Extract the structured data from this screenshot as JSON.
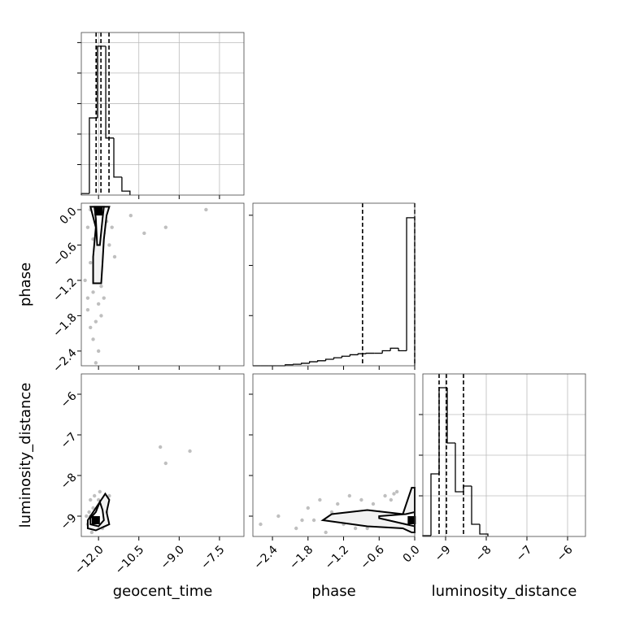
{
  "chart_data": [
    {
      "type": "histogram",
      "bins": [
        -12.64,
        -12.34,
        -12.04,
        -11.73,
        -11.43,
        -11.13,
        -10.83
      ],
      "values": [
        0.05,
        2.53,
        4.88,
        1.87,
        0.59,
        0.13
      ],
      "quantiles": [
        -12.09,
        -11.91,
        -11.61
      ],
      "xlim": [
        -12.64,
        -6.59
      ],
      "xticks": [
        -12,
        -10.5,
        -9,
        -7.5
      ],
      "ylim": [
        0,
        5.33
      ],
      "yticks": [
        1,
        2,
        3,
        4,
        5
      ],
      "grid": true
    },
    {
      "type": "scatter",
      "y_label": "phase",
      "x": [
        -12.3,
        -12.1,
        -11.9,
        -11.7,
        -12.4,
        -12.2,
        -12.0,
        -11.8,
        -11.6,
        -12.3,
        -12.1,
        -11.9,
        -12.5,
        -12.2,
        -12.0,
        -11.8,
        -12.4,
        -12.1,
        -11.9,
        -12.3,
        -12.2,
        -12.0,
        -12.4,
        -12.1,
        -11.5,
        -11.4,
        -10.8,
        -10.3,
        -9.5,
        -8.0
      ],
      "y": [
        0.0,
        -0.1,
        -0.05,
        -0.2,
        -0.3,
        -0.5,
        -0.7,
        -0.4,
        -0.6,
        -0.9,
        -1.1,
        -1.3,
        -1.2,
        -1.4,
        -1.6,
        -1.5,
        -1.7,
        -1.9,
        -1.8,
        -2.0,
        -2.2,
        -2.4,
        -1.5,
        -2.6,
        -0.3,
        -0.8,
        -0.1,
        -0.4,
        -0.3,
        0.0
      ],
      "contours": [
        {
          "x": [
            -12.3,
            -11.6,
            -11.7,
            -11.8,
            -11.85,
            -11.9,
            -12.2,
            -12.2,
            -12.1,
            -12.3
          ],
          "y": [
            0.05,
            0.05,
            -0.1,
            -0.5,
            -0.9,
            -1.25,
            -1.25,
            -0.8,
            -0.3,
            0.05
          ]
        },
        {
          "x": [
            -12.15,
            -11.8,
            -11.85,
            -11.95,
            -12.05,
            -12.1,
            -12.15
          ],
          "y": [
            0.05,
            0.05,
            -0.15,
            -0.6,
            -0.6,
            -0.15,
            0.05
          ]
        }
      ],
      "peak": {
        "x": [
          -12.0
        ],
        "y": [
          -0.03
        ]
      },
      "xlim": [
        -12.64,
        -6.59
      ],
      "xticks": [
        -12,
        -10.5,
        -9,
        -7.5
      ],
      "ylim": [
        -2.65,
        0.11
      ],
      "yticks": [
        {
          "value": 0,
          "label": "0.0"
        },
        {
          "value": -0.6,
          "label": "−0.6"
        },
        {
          "value": -1.2,
          "label": "−1.2"
        },
        {
          "value": -1.8,
          "label": "−1.8"
        },
        {
          "value": -2.4,
          "label": "−2.4"
        }
      ],
      "grid": false
    },
    {
      "type": "histogram",
      "bins": [
        -2.73,
        -2.5935,
        -2.457,
        -2.3205,
        -2.184,
        -2.0475,
        -1.911,
        -1.7745,
        -1.638,
        -1.5015,
        -1.365,
        -1.2285,
        -1.092,
        -0.9555,
        -0.819,
        -0.6825,
        -0.546,
        -0.4095,
        -0.273,
        -0.1365,
        0
      ],
      "values": [
        0,
        0,
        0,
        0,
        0.02,
        0.03,
        0.05,
        0.08,
        0.1,
        0.13,
        0.16,
        0.19,
        0.22,
        0.24,
        0.25,
        0.25,
        0.3,
        0.35,
        0.3,
        2.95
      ],
      "quantiles": [
        -0.88,
        0
      ],
      "xlim": [
        -2.73,
        0
      ],
      "xticks": [
        -2.4,
        -1.8,
        -1.2,
        -0.6,
        0
      ],
      "ylim": [
        0,
        3.24
      ],
      "yticks": [
        1,
        2,
        3
      ],
      "grid": false
    },
    {
      "type": "scatter",
      "x_label": "geocent_time",
      "y_label": "luminosity_distance",
      "x": [
        -12.4,
        -12.3,
        -12.2,
        -12.1,
        -12.0,
        -11.9,
        -11.8,
        -11.7,
        -11.6,
        -12.35,
        -12.25,
        -12.15,
        -12.05,
        -11.95,
        -11.85,
        -11.75,
        -12.3,
        -12.0,
        -11.9,
        -12.2,
        -11.7,
        -12.45,
        -9.7,
        -8.6,
        -9.5
      ],
      "y": [
        -9.2,
        -9.0,
        -8.8,
        -9.3,
        -8.6,
        -8.9,
        -9.1,
        -8.7,
        -8.5,
        -8.9,
        -9.4,
        -8.5,
        -9.2,
        -8.4,
        -9.3,
        -9.0,
        -8.6,
        -8.8,
        -9.1,
        -9.3,
        -8.9,
        -9.0,
        -7.3,
        -7.4,
        -7.7
      ],
      "contours": [
        {
          "x": [
            -12.4,
            -12.1,
            -11.6,
            -11.7,
            -11.6,
            -11.75,
            -12.0,
            -12.4
          ],
          "y": [
            -9.3,
            -9.35,
            -9.2,
            -8.9,
            -8.6,
            -8.45,
            -8.7,
            -9.1
          ]
        },
        {
          "x": [
            -12.3,
            -12.0,
            -11.8,
            -11.85,
            -11.95,
            -12.1,
            -12.3
          ],
          "y": [
            -9.2,
            -9.25,
            -9.1,
            -8.85,
            -8.65,
            -8.9,
            -9.05
          ]
        }
      ],
      "peak": {
        "x": [
          -12.1
        ],
        "y": [
          -9.1
        ]
      },
      "xlim": [
        -12.64,
        -6.59
      ],
      "xticks": [
        {
          "value": -12,
          "label": "−12.0"
        },
        {
          "value": -10.5,
          "label": "−10.5"
        },
        {
          "value": -9,
          "label": "−9.0"
        },
        {
          "value": -7.5,
          "label": "−7.5"
        }
      ],
      "ylim": [
        -9.5,
        -5.5
      ],
      "yticks": [
        {
          "value": -6,
          "label": "−6"
        },
        {
          "value": -7,
          "label": "−7"
        },
        {
          "value": -8,
          "label": "−8"
        },
        {
          "value": -9,
          "label": "−9"
        }
      ],
      "grid": false
    },
    {
      "type": "scatter",
      "x_label": "phase",
      "x": [
        -2.6,
        -2.3,
        -2.0,
        -1.8,
        -1.7,
        -1.6,
        -1.5,
        -1.4,
        -1.3,
        -1.2,
        -1.1,
        -1.0,
        -0.9,
        -0.8,
        -0.7,
        -0.6,
        -0.5,
        -0.4,
        -0.3,
        -0.2,
        -0.1,
        -0.05,
        -1.9,
        -1.0,
        -0.35
      ],
      "y": [
        -9.2,
        -9.0,
        -9.3,
        -8.8,
        -9.1,
        -8.6,
        -9.4,
        -8.9,
        -8.7,
        -9.2,
        -8.5,
        -9.0,
        -8.6,
        -9.3,
        -8.7,
        -8.9,
        -8.5,
        -8.6,
        -8.4,
        -9.2,
        -8.8,
        -8.4,
        -9.1,
        -9.3,
        -8.45
      ],
      "contours": [
        {
          "x": [
            -1.55,
            -0.8,
            -0.2,
            -0.05,
            0,
            0,
            -0.05,
            -0.2,
            -0.8,
            -1.4,
            -1.55
          ],
          "y": [
            -9.1,
            -9.25,
            -9.3,
            -9.4,
            -9.4,
            -8.3,
            -8.3,
            -8.95,
            -8.85,
            -8.95,
            -9.1
          ]
        },
        {
          "x": [
            -0.6,
            -0.15,
            0,
            0,
            -0.15,
            -0.6
          ],
          "y": [
            -9.05,
            -9.2,
            -9.25,
            -8.9,
            -8.95,
            -9.0
          ]
        }
      ],
      "peak": {
        "x": [
          -0.05
        ],
        "y": [
          -9.1
        ]
      },
      "xlim": [
        -2.73,
        0
      ],
      "xticks": [
        {
          "value": -2.4,
          "label": "−2.4"
        },
        {
          "value": -1.8,
          "label": "−1.8"
        },
        {
          "value": -1.2,
          "label": "−1.2"
        },
        {
          "value": -0.6,
          "label": "−0.6"
        },
        {
          "value": 0,
          "label": "0.0"
        }
      ],
      "ylim": [
        -9.5,
        -5.5
      ],
      "yticks": [
        -6,
        -7,
        -8,
        -9
      ],
      "grid": false
    },
    {
      "type": "histogram",
      "x_label": "luminosity_distance",
      "bins": [
        -9.56,
        -9.36,
        -9.16,
        -8.96,
        -8.76,
        -8.56,
        -8.36,
        -8.16,
        -7.96
      ],
      "values": [
        0.02,
        1.54,
        3.66,
        2.3,
        1.1,
        1.24,
        0.3,
        0.06
      ],
      "quantiles": [
        -9.16,
        -8.98,
        -8.56
      ],
      "xlim": [
        -9.56,
        -5.56
      ],
      "xticks": [
        {
          "value": -9,
          "label": "−9"
        },
        {
          "value": -8,
          "label": "−8"
        },
        {
          "value": -7,
          "label": "−7"
        },
        {
          "value": -6,
          "label": "−6"
        }
      ],
      "ylim": [
        0,
        4
      ],
      "yticks": [
        1,
        2,
        3
      ],
      "grid": true
    }
  ]
}
